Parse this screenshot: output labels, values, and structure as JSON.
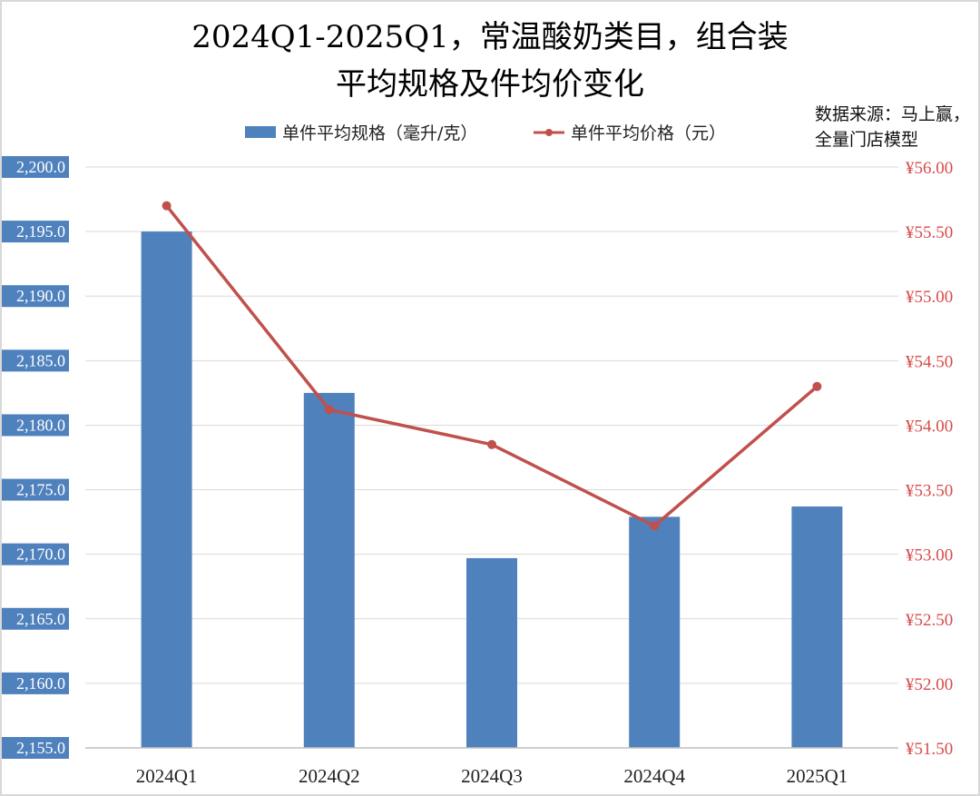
{
  "chart_data": {
    "type": "bar+line",
    "title_lines": [
      "2024Q1-2025Q1，常温酸奶类目，组合装",
      "平均规格及件均价变化"
    ],
    "source_lines": [
      "数据来源：马上赢，",
      "全量门店模型"
    ],
    "categories": [
      "2024Q1",
      "2024Q2",
      "2024Q3",
      "2024Q4",
      "2025Q1"
    ],
    "series": [
      {
        "name": "单件平均规格（毫升/克）",
        "type": "bar",
        "axis": "left",
        "color": "#4f81bd",
        "values": [
          2195.0,
          2182.5,
          2169.7,
          2172.9,
          2173.7
        ]
      },
      {
        "name": "单件平均价格（元）",
        "type": "line",
        "axis": "right",
        "color": "#c0504d",
        "values": [
          55.7,
          54.12,
          53.85,
          53.22,
          54.3
        ]
      }
    ],
    "left_axis": {
      "ylim": [
        2155,
        2200
      ],
      "ticks": [
        "2,155.0",
        "2,160.0",
        "2,165.0",
        "2,170.0",
        "2,175.0",
        "2,180.0",
        "2,185.0",
        "2,190.0",
        "2,195.0",
        "2,200.0"
      ],
      "label_background": "#4f81bd"
    },
    "right_axis": {
      "ylim": [
        51.5,
        56.0
      ],
      "ticks": [
        "¥51.50",
        "¥52.00",
        "¥52.50",
        "¥53.00",
        "¥53.50",
        "¥54.00",
        "¥54.50",
        "¥55.00",
        "¥55.50",
        "¥56.00"
      ],
      "color": "#d84b4b"
    },
    "grid": true,
    "legend_position": "top"
  }
}
